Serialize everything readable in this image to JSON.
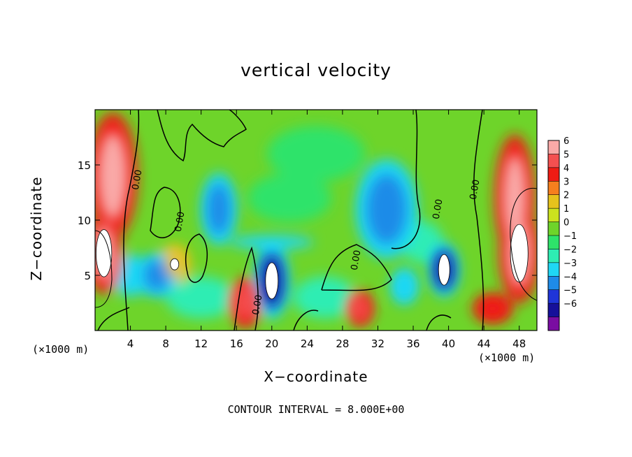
{
  "chart_data": {
    "type": "heatmap",
    "title": "vertical velocity",
    "xlabel": "X−coordinate",
    "ylabel": "Z−coordinate",
    "x_unit": "(×1000 m)",
    "footer": "CONTOUR INTERVAL = 8.000E+00",
    "xlim": [
      0,
      50
    ],
    "ylim": [
      0,
      20
    ],
    "x_ticks": [
      4,
      8,
      12,
      16,
      20,
      24,
      28,
      32,
      36,
      40,
      44,
      48
    ],
    "y_ticks": [
      5,
      10,
      15
    ],
    "colorbar": {
      "levels": [
        "6",
        "5",
        "4",
        "3",
        "2",
        "1",
        "0",
        "−1",
        "−2",
        "−3",
        "−4",
        "−5",
        "−6"
      ],
      "colors": [
        "#f9a9a7",
        "#f45050",
        "#ee1c14",
        "#f57f1e",
        "#e6c21c",
        "#cbe21e",
        "#6ed42a",
        "#2ee36a",
        "#2eedb3",
        "#1fd7f4",
        "#1e8be8",
        "#1f35d8",
        "#16109a",
        "#7a0da2"
      ]
    },
    "contour_labels": [
      "0.00",
      "0.00",
      "0.00",
      "0.00",
      "0.00",
      "0.00"
    ],
    "features": [
      {
        "x": 2,
        "z": 14,
        "value": 5.5
      },
      {
        "x": 1,
        "z": 7,
        "value": 7
      },
      {
        "x": 17,
        "z": 2.5,
        "value": 5
      },
      {
        "x": 30,
        "z": 2,
        "value": 4.5
      },
      {
        "x": 9,
        "z": 6,
        "value": 2
      },
      {
        "x": 20,
        "z": 4.5,
        "value": -6
      },
      {
        "x": 39.5,
        "z": 5.5,
        "value": -6
      },
      {
        "x": 33,
        "z": 11,
        "value": -4
      },
      {
        "x": 14,
        "z": 11,
        "value": -4
      },
      {
        "x": 47.5,
        "z": 12,
        "value": 5.5
      },
      {
        "x": 48,
        "z": 7,
        "value": 7
      },
      {
        "x": 45,
        "z": 2,
        "value": 4
      },
      {
        "x": 7,
        "z": 5,
        "value": -4
      },
      {
        "x": 35,
        "z": 4,
        "value": -3
      }
    ]
  }
}
